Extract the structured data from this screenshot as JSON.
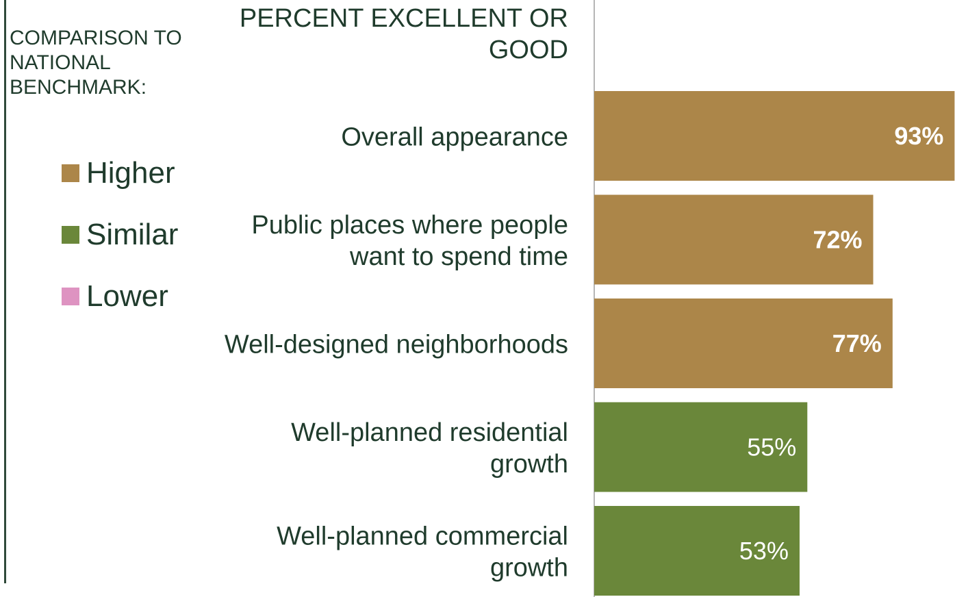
{
  "legend": {
    "title": "COMPARISON TO NATIONAL BENCHMARK:",
    "items": [
      {
        "label": "Higher",
        "color": "#ac8649"
      },
      {
        "label": "Similar",
        "color": "#6a873a"
      },
      {
        "label": "Lower",
        "color": "#de93c1"
      }
    ]
  },
  "chart_data": {
    "type": "bar",
    "orientation": "horizontal",
    "title": "PERCENT EXCELLENT OR GOOD",
    "categories": [
      "Overall appearance",
      "Public places where people want to spend time",
      "Well-designed neighborhoods",
      "Well-planned residential growth",
      "Well-planned commercial growth"
    ],
    "values": [
      93,
      72,
      77,
      55,
      53
    ],
    "value_labels": [
      "93%",
      "72%",
      "77%",
      "55%",
      "53%"
    ],
    "comparison": [
      "Higher",
      "Higher",
      "Higher",
      "Similar",
      "Similar"
    ],
    "xlim": [
      0,
      100
    ],
    "grid": false,
    "legend_position": "left"
  }
}
